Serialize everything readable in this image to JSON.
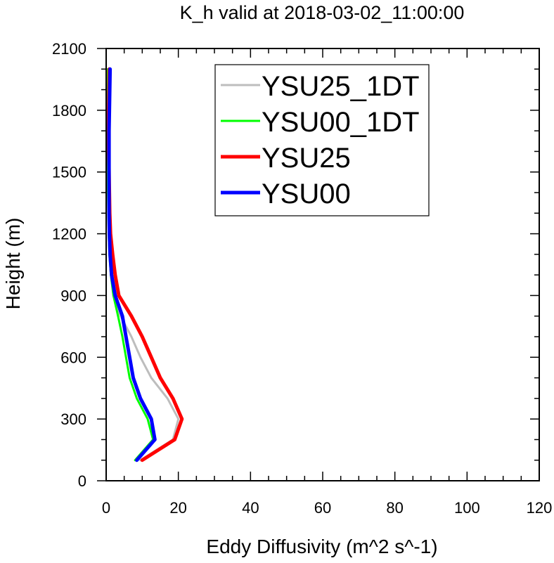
{
  "chart_data": {
    "type": "line",
    "title": "K_h valid at 2018-03-02_11:00:00",
    "xlabel": "Eddy Diffusivity (m^2 s^-1)",
    "ylabel": "Height (m)",
    "xlim": [
      0,
      120
    ],
    "ylim": [
      0,
      2100
    ],
    "xticks": [
      0,
      20,
      40,
      60,
      80,
      100,
      120
    ],
    "yticks": [
      0,
      300,
      600,
      900,
      1200,
      1500,
      1800,
      2100
    ],
    "xtick_labels": [
      "0",
      "20",
      "40",
      "60",
      "80",
      "100",
      "120"
    ],
    "ytick_labels": [
      "0",
      "300",
      "600",
      "900",
      "1200",
      "1500",
      "1800",
      "2100"
    ],
    "legend_position": "top-center",
    "grid": false,
    "series": [
      {
        "name": "YSU25_1DT",
        "color": "#bdbdbd",
        "points": [
          [
            9.5,
            100
          ],
          [
            18.5,
            200
          ],
          [
            20.0,
            300
          ],
          [
            17.0,
            400
          ],
          [
            12.5,
            500
          ],
          [
            9.5,
            600
          ],
          [
            7.0,
            700
          ],
          [
            4.0,
            800
          ],
          [
            2.0,
            900
          ],
          [
            1.3,
            1000
          ],
          [
            1.0,
            1100
          ],
          [
            0.8,
            1200
          ],
          [
            0.7,
            1300
          ],
          [
            0.6,
            1400
          ],
          [
            0.5,
            1500
          ],
          [
            0.5,
            1600
          ],
          [
            0.5,
            1700
          ],
          [
            0.5,
            1800
          ],
          [
            0.5,
            1900
          ],
          [
            0.5,
            2000
          ]
        ]
      },
      {
        "name": "YSU00_1DT",
        "color": "#00ff00",
        "points": [
          [
            8.0,
            100
          ],
          [
            13.0,
            200
          ],
          [
            11.5,
            300
          ],
          [
            8.5,
            400
          ],
          [
            6.5,
            500
          ],
          [
            5.5,
            600
          ],
          [
            4.5,
            700
          ],
          [
            3.3,
            800
          ],
          [
            2.0,
            900
          ],
          [
            1.3,
            1000
          ],
          [
            0.9,
            1100
          ],
          [
            0.7,
            1200
          ],
          [
            0.6,
            1300
          ],
          [
            0.5,
            1400
          ],
          [
            0.5,
            1500
          ],
          [
            0.5,
            1600
          ],
          [
            0.5,
            1700
          ],
          [
            0.5,
            1800
          ],
          [
            0.5,
            1900
          ],
          [
            0.5,
            2000
          ]
        ]
      },
      {
        "name": "YSU25",
        "color": "#ff0000",
        "points": [
          [
            10.0,
            100
          ],
          [
            19.0,
            200
          ],
          [
            21.0,
            300
          ],
          [
            18.5,
            400
          ],
          [
            15.0,
            500
          ],
          [
            12.5,
            600
          ],
          [
            10.0,
            700
          ],
          [
            7.0,
            800
          ],
          [
            3.5,
            900
          ],
          [
            2.5,
            1000
          ],
          [
            1.8,
            1100
          ],
          [
            1.2,
            1200
          ],
          [
            1.0,
            1300
          ],
          [
            0.9,
            1400
          ],
          [
            0.8,
            1500
          ],
          [
            0.7,
            1600
          ],
          [
            0.7,
            1700
          ],
          [
            0.7,
            1800
          ],
          [
            0.8,
            1900
          ],
          [
            0.9,
            2000
          ]
        ]
      },
      {
        "name": "YSU00",
        "color": "#0000ff",
        "points": [
          [
            8.5,
            100
          ],
          [
            13.5,
            200
          ],
          [
            12.5,
            300
          ],
          [
            9.5,
            400
          ],
          [
            7.5,
            500
          ],
          [
            6.5,
            600
          ],
          [
            5.5,
            700
          ],
          [
            4.5,
            800
          ],
          [
            2.5,
            900
          ],
          [
            1.5,
            1000
          ],
          [
            1.1,
            1100
          ],
          [
            0.9,
            1200
          ],
          [
            0.8,
            1300
          ],
          [
            0.8,
            1400
          ],
          [
            0.8,
            1500
          ],
          [
            0.8,
            1600
          ],
          [
            0.8,
            1700
          ],
          [
            0.9,
            1800
          ],
          [
            1.0,
            1900
          ],
          [
            1.1,
            2000
          ]
        ]
      }
    ]
  }
}
